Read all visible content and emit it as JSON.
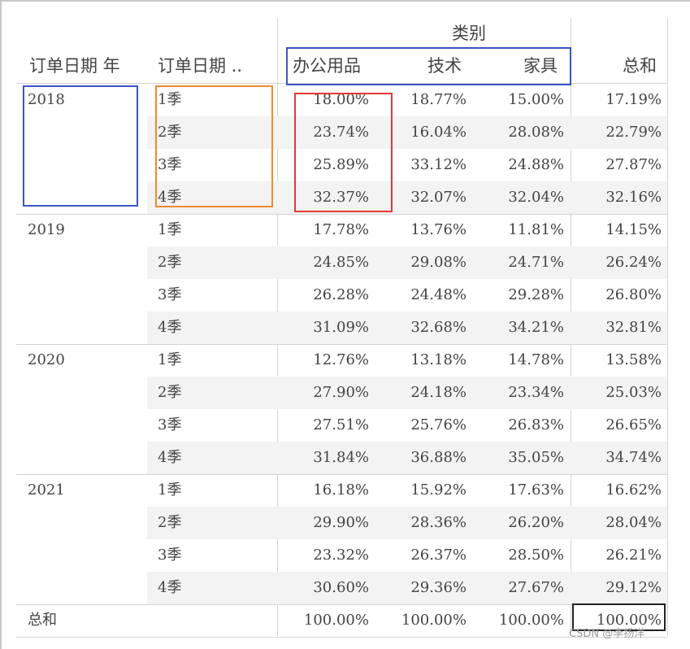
{
  "header": {
    "category_title": "类别",
    "col_year": "订单日期 年",
    "col_quarter": "订单日期 ..",
    "categories": [
      "办公用品",
      "技术",
      "家具"
    ],
    "total_col": "总和"
  },
  "rows": [
    {
      "year": "2018",
      "quarter": "1季",
      "values": [
        "18.00%",
        "18.77%",
        "15.00%",
        "17.19%"
      ]
    },
    {
      "year": "",
      "quarter": "2季",
      "values": [
        "23.74%",
        "16.04%",
        "28.08%",
        "22.79%"
      ]
    },
    {
      "year": "",
      "quarter": "3季",
      "values": [
        "25.89%",
        "33.12%",
        "24.88%",
        "27.87%"
      ]
    },
    {
      "year": "",
      "quarter": "4季",
      "values": [
        "32.37%",
        "32.07%",
        "32.04%",
        "32.16%"
      ]
    },
    {
      "year": "2019",
      "quarter": "1季",
      "values": [
        "17.78%",
        "13.76%",
        "11.81%",
        "14.15%"
      ]
    },
    {
      "year": "",
      "quarter": "2季",
      "values": [
        "24.85%",
        "29.08%",
        "24.71%",
        "26.24%"
      ]
    },
    {
      "year": "",
      "quarter": "3季",
      "values": [
        "26.28%",
        "24.48%",
        "29.28%",
        "26.80%"
      ]
    },
    {
      "year": "",
      "quarter": "4季",
      "values": [
        "31.09%",
        "32.68%",
        "34.21%",
        "32.81%"
      ]
    },
    {
      "year": "2020",
      "quarter": "1季",
      "values": [
        "12.76%",
        "13.18%",
        "14.78%",
        "13.58%"
      ]
    },
    {
      "year": "",
      "quarter": "2季",
      "values": [
        "27.90%",
        "24.18%",
        "23.34%",
        "25.03%"
      ]
    },
    {
      "year": "",
      "quarter": "3季",
      "values": [
        "27.51%",
        "25.76%",
        "26.83%",
        "26.65%"
      ]
    },
    {
      "year": "",
      "quarter": "4季",
      "values": [
        "31.84%",
        "36.88%",
        "35.05%",
        "34.74%"
      ]
    },
    {
      "year": "2021",
      "quarter": "1季",
      "values": [
        "16.18%",
        "15.92%",
        "17.63%",
        "16.62%"
      ]
    },
    {
      "year": "",
      "quarter": "2季",
      "values": [
        "29.90%",
        "28.36%",
        "26.20%",
        "28.04%"
      ]
    },
    {
      "year": "",
      "quarter": "3季",
      "values": [
        "23.32%",
        "26.37%",
        "28.50%",
        "26.21%"
      ]
    },
    {
      "year": "",
      "quarter": "4季",
      "values": [
        "30.60%",
        "29.36%",
        "27.67%",
        "29.12%"
      ]
    }
  ],
  "total_row": {
    "label": "总和",
    "values": [
      "100.00%",
      "100.00%",
      "100.00%",
      "100.00%"
    ]
  },
  "watermark": "CSDN @李扬洋",
  "colors": {
    "blue_box": "#3a55c4",
    "orange_box": "#ee8a2e",
    "red_box": "#e23838",
    "stripe": "#f3f3f3"
  }
}
